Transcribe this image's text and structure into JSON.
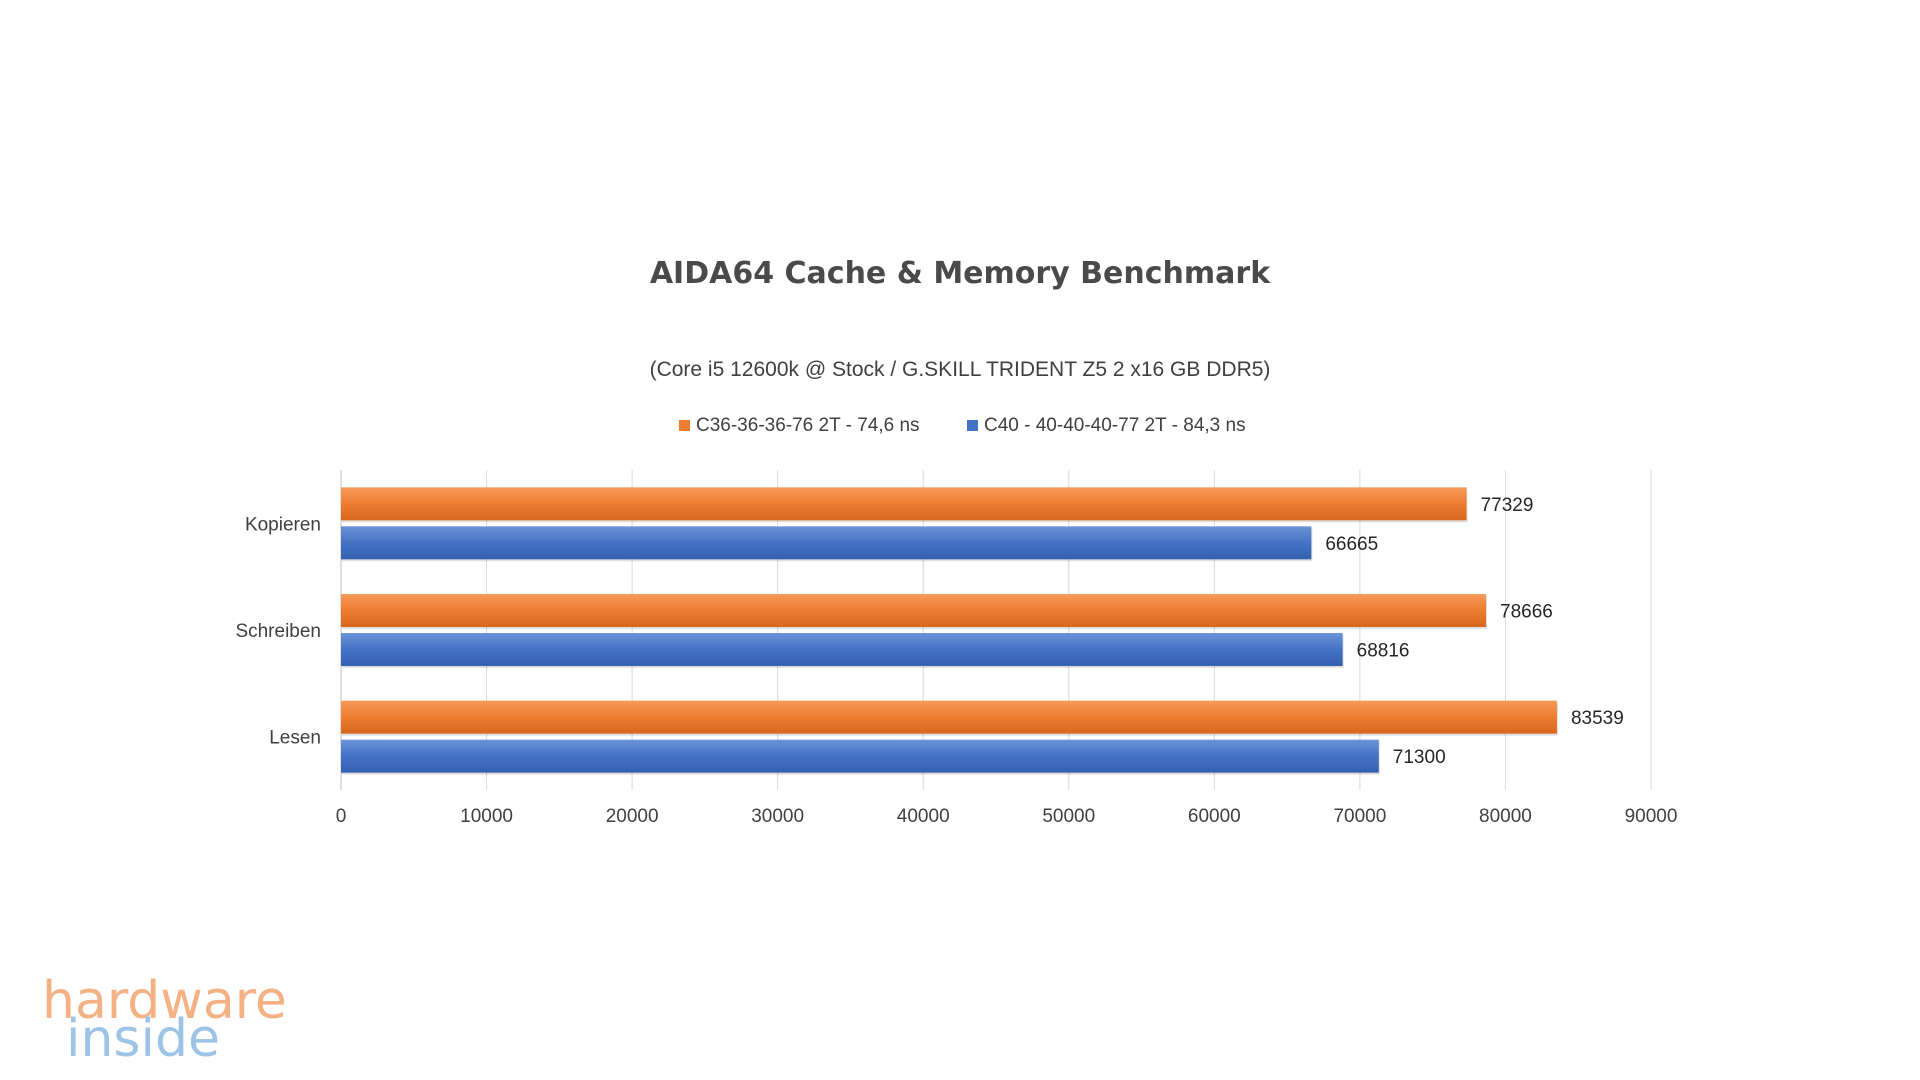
{
  "chart_data": {
    "type": "bar",
    "orientation": "horizontal",
    "title": "AIDA64 Cache & Memory Benchmark",
    "subtitle": "(Core i5 12600k @ Stock / G.SKILL TRIDENT Z5  2 x16 GB DDR5)",
    "categories": [
      "Kopieren",
      "Schreiben",
      "Lesen"
    ],
    "series": [
      {
        "name": "C36-36-36-76 2T - 74,6 ns",
        "color": "#ed7d31",
        "values": [
          77329,
          78666,
          83539
        ]
      },
      {
        "name": "C40 - 40-40-40-77 2T - 84,3 ns",
        "color": "#4472c4",
        "values": [
          66665,
          68816,
          71300
        ]
      }
    ],
    "xlim": [
      0,
      90000
    ],
    "xticks": [
      "0",
      "10000",
      "20000",
      "30000",
      "40000",
      "50000",
      "60000",
      "70000",
      "80000",
      "90000"
    ],
    "grid": true,
    "legend_position": "top",
    "data_labels": true
  },
  "watermark": {
    "line1": "hardware",
    "line2": "inside",
    "colors": [
      "#f4b183",
      "#9dc3e6"
    ]
  }
}
